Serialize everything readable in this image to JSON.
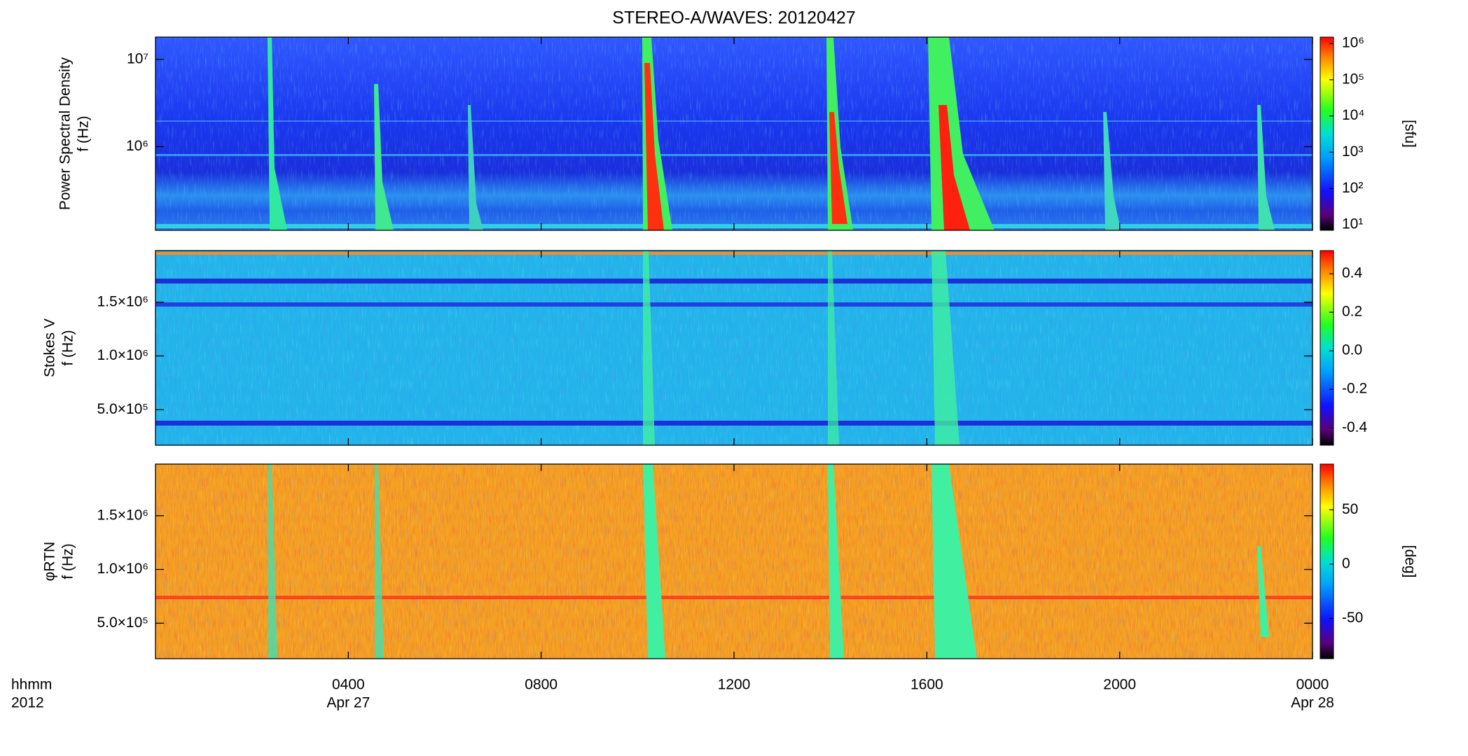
{
  "chart_data": [
    {
      "type": "heatmap",
      "title": "STEREO-A/WAVES: 20120427",
      "ylabel": [
        "Power Spectral Density",
        "f (Hz)"
      ],
      "ylog": true,
      "ylim": [
        110000,
        18000000
      ],
      "yticks": [
        {
          "value": 1000000,
          "label": "10⁶"
        },
        {
          "value": 10000000,
          "label": "10⁷"
        }
      ],
      "colorbar": {
        "log": true,
        "lim": [
          7,
          1500000
        ],
        "label": "[sfu]",
        "ticks": [
          {
            "value": 10,
            "label": "10¹"
          },
          {
            "value": 100,
            "label": "10²"
          },
          {
            "value": 1000,
            "label": "10³"
          },
          {
            "value": 10000,
            "label": "10⁴"
          },
          {
            "value": 100000,
            "label": "10⁵"
          },
          {
            "value": 1000000,
            "label": "10⁶"
          }
        ]
      }
    },
    {
      "type": "heatmap",
      "ylabel": [
        "Stokes V",
        "f (Hz)"
      ],
      "ylog": false,
      "ylim": [
        170000,
        1980000
      ],
      "yticks": [
        {
          "value": 500000,
          "label": "5.0×10⁵"
        },
        {
          "value": 1000000,
          "label": "1.0×10⁶"
        },
        {
          "value": 1500000,
          "label": "1.5×10⁶"
        }
      ],
      "colorbar": {
        "log": false,
        "lim": [
          -0.49,
          0.52
        ],
        "ticks": [
          -0.4,
          -0.2,
          {
            "value": 0,
            "label": "0.0"
          },
          0.2,
          0.4
        ]
      }
    },
    {
      "type": "heatmap",
      "ylabel": [
        "φRTN",
        "f (Hz)"
      ],
      "ylog": false,
      "ylim": [
        170000,
        1980000
      ],
      "yticks": [
        {
          "value": 500000,
          "label": "5.0×10⁵"
        },
        {
          "value": 1000000,
          "label": "1.0×10⁶"
        },
        {
          "value": 1500000,
          "label": "1.5×10⁶"
        }
      ],
      "colorbar": {
        "log": false,
        "lim": [
          -87,
          92
        ],
        "label": "[deg]",
        "ticks": [
          -50,
          0,
          50
        ]
      },
      "xlabel": [
        "hhmm",
        "2012"
      ],
      "xlim": [
        0,
        24
      ],
      "xticks": [
        {
          "value": 4,
          "label": "0400"
        },
        {
          "value": 8,
          "label": "0800"
        },
        {
          "value": 12,
          "label": "1200"
        },
        {
          "value": 16,
          "label": "1600"
        },
        {
          "value": 20,
          "label": "2000"
        },
        {
          "value": 24,
          "label": "0000"
        }
      ],
      "xtick_dates": [
        {
          "value": 4,
          "label": "Apr 27"
        },
        {
          "value": 24,
          "label": "Apr 28"
        }
      ]
    }
  ]
}
